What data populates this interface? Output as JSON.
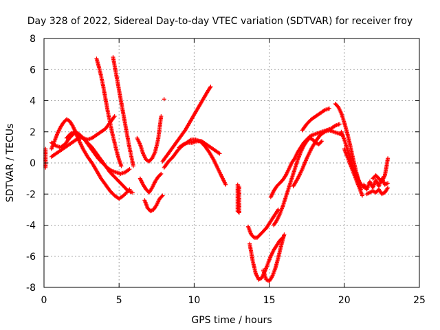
{
  "chart_data": {
    "type": "scatter",
    "title": "Day 328 of 2022, Sidereal Day-to-day VTEC variation (SDTVAR) for receiver froy",
    "xlabel": "GPS time / hours",
    "ylabel": "SDTVAR / TECUs",
    "xlim": [
      0,
      25
    ],
    "ylim": [
      -8,
      8
    ],
    "xticks": [
      0,
      5,
      10,
      15,
      20,
      25
    ],
    "yticks": [
      -8,
      -6,
      -4,
      -2,
      0,
      2,
      4,
      6,
      8
    ],
    "xtick_labels": [
      "0",
      "5",
      "10",
      "15",
      "20",
      "25"
    ],
    "ytick_labels": [
      "-8",
      "-6",
      "-4",
      "-2",
      "0",
      "2",
      "4",
      "6",
      "8"
    ],
    "grid": true,
    "marker": "+",
    "color": "#ff0000",
    "series": [
      {
        "x": [
          0.1,
          0.1,
          0.1
        ],
        "y": [
          0.9,
          0.0,
          -0.3
        ]
      },
      {
        "x": [
          0.5,
          0.7,
          0.9,
          1.1,
          1.3,
          1.5,
          1.7,
          1.9,
          2.1,
          2.3,
          2.6,
          2.9,
          3.2,
          3.5,
          3.8,
          4.1,
          4.4,
          4.7,
          5.0,
          5.3,
          5.7
        ],
        "y": [
          0.9,
          1.4,
          1.9,
          2.3,
          2.6,
          2.8,
          2.7,
          2.4,
          2.0,
          1.5,
          0.9,
          0.4,
          0.0,
          -0.5,
          -1.0,
          -1.4,
          -1.8,
          -2.1,
          -2.3,
          -2.1,
          -1.7
        ]
      },
      {
        "x": [
          0.5,
          0.8,
          1.1,
          1.4,
          1.7,
          2.0,
          2.3,
          2.6,
          2.9,
          3.2,
          3.5,
          3.8,
          4.1,
          4.4,
          4.7,
          5.0,
          5.3,
          5.6,
          5.9
        ],
        "y": [
          1.3,
          1.1,
          1.0,
          1.2,
          1.6,
          1.9,
          1.8,
          1.6,
          1.3,
          1.0,
          0.6,
          0.2,
          -0.2,
          -0.6,
          -0.9,
          -1.2,
          -1.5,
          -1.8,
          -1.9
        ]
      },
      {
        "x": [
          0.5,
          0.8,
          1.1,
          1.4,
          1.7,
          2.0,
          2.3,
          2.6,
          2.9,
          3.2,
          3.5,
          3.8,
          4.1,
          4.4,
          4.7
        ],
        "y": [
          0.4,
          0.6,
          0.8,
          1.0,
          1.2,
          1.4,
          1.6,
          1.6,
          1.5,
          1.6,
          1.8,
          2.0,
          2.2,
          2.6,
          3.0
        ]
      },
      {
        "x": [
          1.5,
          1.8,
          2.1,
          2.4,
          2.7,
          3.0,
          3.3,
          3.6,
          3.9,
          4.2,
          4.5,
          4.8,
          5.1,
          5.4,
          5.7
        ],
        "y": [
          1.6,
          1.9,
          2.0,
          1.8,
          1.5,
          1.1,
          0.7,
          0.3,
          0.0,
          -0.3,
          -0.5,
          -0.6,
          -0.7,
          -0.6,
          -0.4
        ]
      },
      {
        "x": [
          3.5,
          3.65,
          3.8,
          3.95,
          4.1,
          4.25,
          4.4,
          4.55,
          4.7,
          4.85,
          5.0,
          5.15
        ],
        "y": [
          6.7,
          6.2,
          5.6,
          4.9,
          4.1,
          3.3,
          2.6,
          1.9,
          1.3,
          0.7,
          0.2,
          -0.2
        ]
      },
      {
        "x": [
          4.6,
          4.75,
          4.9,
          5.05,
          5.2,
          5.35,
          5.5,
          5.65,
          5.8,
          5.95
        ],
        "y": [
          6.8,
          6.0,
          5.2,
          4.4,
          3.6,
          2.8,
          2.0,
          1.2,
          0.5,
          -0.2
        ]
      },
      {
        "x": [
          6.2,
          6.4,
          6.6,
          6.8,
          7.0,
          7.2,
          7.4,
          7.6,
          7.8
        ],
        "y": [
          1.6,
          1.2,
          0.6,
          0.2,
          0.1,
          0.3,
          0.7,
          1.5,
          3.0
        ]
      },
      {
        "x": [
          6.4,
          6.6,
          6.8,
          7.0,
          7.2,
          7.4,
          7.6,
          7.8
        ],
        "y": [
          -1.0,
          -1.4,
          -1.7,
          -1.9,
          -1.6,
          -1.2,
          -0.9,
          -0.7
        ]
      },
      {
        "x": [
          6.7,
          6.9,
          7.1,
          7.3,
          7.5,
          7.7,
          7.9
        ],
        "y": [
          -2.4,
          -2.9,
          -3.1,
          -3.0,
          -2.7,
          -2.3,
          -2.1
        ]
      },
      {
        "x": [
          8.0
        ],
        "y": [
          4.1
        ]
      },
      {
        "x": [
          7.9,
          8.2,
          8.5,
          8.8,
          9.1,
          9.4,
          9.7,
          10.0,
          10.3,
          10.6,
          10.9,
          11.1
        ],
        "y": [
          0.1,
          0.5,
          0.9,
          1.3,
          1.7,
          2.1,
          2.6,
          3.1,
          3.6,
          4.1,
          4.6,
          4.9
        ]
      },
      {
        "x": [
          8.0,
          8.3,
          8.6,
          8.9,
          9.2,
          9.5,
          9.8,
          10.1,
          10.4,
          10.7,
          11.0,
          11.3,
          11.6,
          11.9,
          12.1
        ],
        "y": [
          -0.3,
          0.1,
          0.4,
          0.8,
          1.1,
          1.3,
          1.5,
          1.5,
          1.4,
          1.1,
          0.7,
          0.2,
          -0.4,
          -1.0,
          -1.4
        ]
      },
      {
        "x": [
          9.0,
          9.3,
          9.6,
          9.9,
          10.2,
          10.5,
          10.8,
          11.1,
          11.4,
          11.7
        ],
        "y": [
          1.0,
          1.2,
          1.3,
          1.3,
          1.4,
          1.4,
          1.2,
          1.0,
          0.8,
          0.6
        ]
      },
      {
        "x": [
          12.9,
          12.9,
          12.9,
          13.0,
          13.0
        ],
        "y": [
          -1.4,
          -2.0,
          -3.1,
          -3.2,
          -1.5
        ]
      },
      {
        "x": [
          13.6,
          13.8,
          14.0,
          14.2,
          14.4,
          14.6,
          14.8,
          15.0,
          15.2,
          15.4,
          15.6
        ],
        "y": [
          -4.1,
          -4.6,
          -4.8,
          -4.8,
          -4.6,
          -4.4,
          -4.2,
          -3.9,
          -3.6,
          -3.3,
          -3.0
        ]
      },
      {
        "x": [
          13.7,
          13.9,
          14.1,
          14.3,
          14.5,
          14.7,
          14.9,
          15.1,
          15.3,
          15.5,
          15.7,
          15.9
        ],
        "y": [
          -5.2,
          -6.3,
          -7.1,
          -7.5,
          -7.4,
          -7.0,
          -6.5,
          -6.0,
          -5.6,
          -5.3,
          -5.0,
          -4.8
        ]
      },
      {
        "x": [
          14.6,
          14.8,
          15.0,
          15.2,
          15.4,
          15.6,
          15.8,
          16.0
        ],
        "y": [
          -6.9,
          -7.5,
          -7.6,
          -7.3,
          -6.8,
          -6.1,
          -5.3,
          -4.6
        ]
      },
      {
        "x": [
          15.1,
          15.3,
          15.5,
          15.7,
          15.9,
          16.1,
          16.3,
          16.5,
          16.7,
          16.9,
          17.1,
          17.3,
          17.5,
          17.7,
          17.9,
          18.2,
          18.5,
          18.8,
          19.1,
          19.4,
          19.7
        ],
        "y": [
          -2.2,
          -1.8,
          -1.5,
          -1.3,
          -1.1,
          -0.8,
          -0.4,
          0.0,
          0.3,
          0.7,
          1.0,
          1.3,
          1.5,
          1.7,
          1.8,
          1.9,
          2.0,
          2.1,
          2.2,
          2.4,
          2.5
        ]
      },
      {
        "x": [
          15.3,
          15.5,
          15.7,
          15.9,
          16.1,
          16.3,
          16.5,
          16.7,
          16.9,
          17.1,
          17.3,
          17.5,
          17.7,
          17.9,
          18.1,
          18.3,
          18.5
        ],
        "y": [
          -4.0,
          -3.7,
          -3.3,
          -2.8,
          -2.2,
          -1.6,
          -1.0,
          -0.4,
          0.2,
          0.7,
          1.1,
          1.4,
          1.6,
          1.5,
          1.3,
          1.2,
          1.4
        ]
      },
      {
        "x": [
          16.6,
          16.9,
          17.2,
          17.5,
          17.8,
          18.1,
          18.4,
          18.7,
          19.0,
          19.3,
          19.6,
          19.9
        ],
        "y": [
          -1.5,
          -1.0,
          -0.4,
          0.3,
          0.9,
          1.4,
          1.8,
          2.0,
          2.1,
          2.0,
          1.9,
          1.8
        ]
      },
      {
        "x": [
          17.2,
          17.5,
          17.8,
          18.1,
          18.4,
          18.7,
          19.0
        ],
        "y": [
          2.1,
          2.5,
          2.8,
          3.0,
          3.2,
          3.4,
          3.5
        ]
      },
      {
        "x": [
          19.4,
          19.6,
          19.8,
          20.0,
          20.2,
          20.4,
          20.6,
          20.8,
          21.0,
          21.1
        ],
        "y": [
          3.8,
          3.6,
          3.2,
          2.6,
          1.9,
          1.1,
          0.2,
          -0.6,
          -1.3,
          -1.7
        ]
      },
      {
        "x": [
          19.8,
          20.0,
          20.2,
          20.4,
          20.6,
          20.8,
          21.0,
          21.2,
          21.4
        ],
        "y": [
          2.0,
          1.5,
          0.9,
          0.3,
          -0.3,
          -0.8,
          -1.2,
          -1.5,
          -1.6
        ]
      },
      {
        "x": [
          20.0,
          20.2,
          20.4,
          20.6,
          20.8,
          21.0,
          21.2
        ],
        "y": [
          0.9,
          0.4,
          -0.1,
          -0.6,
          -1.1,
          -1.6,
          -2.1
        ]
      },
      {
        "x": [
          21.3,
          21.5,
          21.7,
          21.9,
          22.1,
          22.3,
          22.5,
          22.7,
          22.9
        ],
        "y": [
          -1.4,
          -1.7,
          -1.2,
          -1.6,
          -1.1,
          -1.5,
          -1.0,
          -1.4,
          -1.3
        ]
      },
      {
        "x": [
          21.5,
          21.7,
          21.9,
          22.1,
          22.3,
          22.5,
          22.7,
          22.9
        ],
        "y": [
          -2.0,
          -1.9,
          -1.8,
          -1.9,
          -1.7,
          -2.0,
          -1.9,
          -1.6
        ]
      },
      {
        "x": [
          21.9,
          22.1,
          22.3,
          22.5,
          22.7,
          22.8,
          22.9
        ],
        "y": [
          -1.0,
          -0.8,
          -1.0,
          -1.2,
          -0.8,
          -0.3,
          0.3
        ]
      }
    ]
  }
}
